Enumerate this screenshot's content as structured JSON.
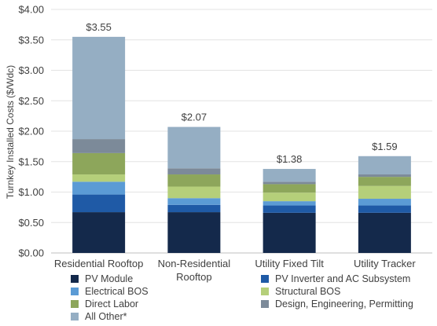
{
  "chart_data": {
    "type": "bar",
    "stacked": true,
    "categories": [
      "Residential Rooftop",
      "Non-Residential Rooftop",
      "Utility Fixed Tilt",
      "Utility Tracker"
    ],
    "category_lines": [
      [
        "Residential Rooftop"
      ],
      [
        "Non-Residential",
        "Rooftop"
      ],
      [
        "Utility Fixed Tilt"
      ],
      [
        "Utility Tracker"
      ]
    ],
    "series": [
      {
        "name": "PV Module",
        "color": "#14294b",
        "values": [
          0.67,
          0.67,
          0.66,
          0.66
        ]
      },
      {
        "name": "PV Inverter and AC Subsystem",
        "color": "#1f5aa6",
        "values": [
          0.29,
          0.12,
          0.12,
          0.12
        ]
      },
      {
        "name": "Electrical BOS",
        "color": "#5b9bd5",
        "values": [
          0.21,
          0.11,
          0.07,
          0.11
        ]
      },
      {
        "name": "Structural BOS",
        "color": "#b5cf7a",
        "values": [
          0.12,
          0.19,
          0.14,
          0.21
        ]
      },
      {
        "name": "Direct Labor",
        "color": "#8da65b",
        "values": [
          0.35,
          0.2,
          0.14,
          0.15
        ]
      },
      {
        "name": "Design, Engineering, Permitting",
        "color": "#7c8a99",
        "values": [
          0.23,
          0.1,
          0.04,
          0.04
        ]
      },
      {
        "name": "All Other*",
        "color": "#95aec3",
        "values": [
          1.68,
          0.68,
          0.21,
          0.3
        ]
      }
    ],
    "totals": [
      "$3.55",
      "$2.07",
      "$1.38",
      "$1.59"
    ],
    "ylabel": "Turnkey Installed Costs ($/Wdc)",
    "ylim": [
      0,
      4
    ],
    "yticks": [
      "$0.00",
      "$0.50",
      "$1.00",
      "$1.50",
      "$2.00",
      "$2.50",
      "$3.00",
      "$3.50",
      "$4.00"
    ],
    "grid": true,
    "legend_position": "bottom"
  }
}
